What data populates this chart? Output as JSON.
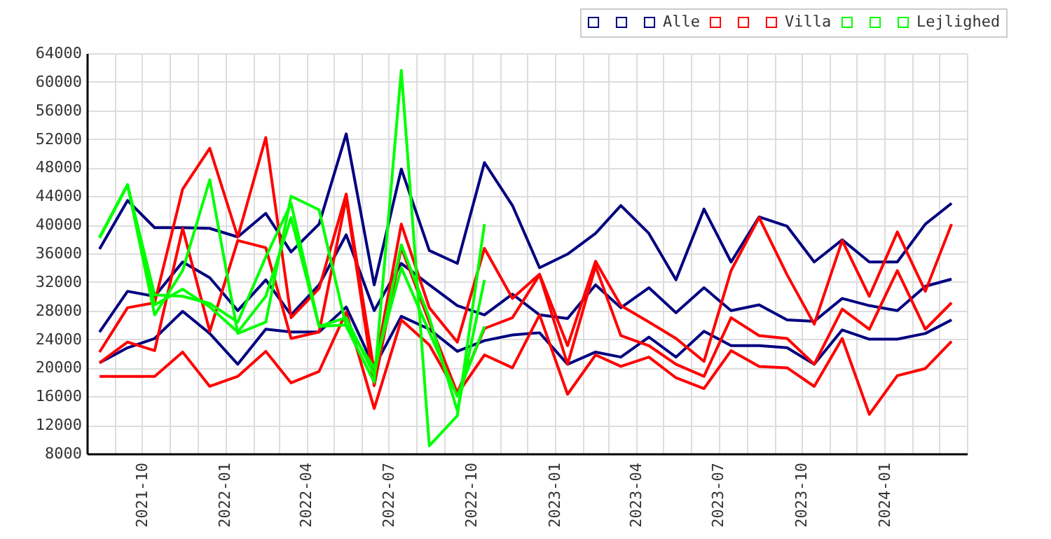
{
  "chart_data": {
    "type": "line",
    "x": [
      "2021-08-15",
      "2021-09-15",
      "2021-10-15",
      "2021-11-15",
      "2021-12-15",
      "2022-01-15",
      "2022-02-15",
      "2022-03-15",
      "2022-04-15",
      "2022-05-15",
      "2022-06-15",
      "2022-07-15",
      "2022-08-15",
      "2022-09-15",
      "2022-10-15",
      "2022-11-15",
      "2022-12-15",
      "2023-01-15",
      "2023-02-15",
      "2023-03-15",
      "2023-04-15",
      "2023-05-15",
      "2023-06-15",
      "2023-07-15",
      "2023-08-15",
      "2023-09-15",
      "2023-10-15",
      "2023-11-15",
      "2023-12-15",
      "2024-01-15",
      "2024-02-15",
      "2024-03-15"
    ],
    "series": [
      {
        "color": "#000080",
        "values": [
          36600,
          43400,
          39600,
          39600,
          39500,
          38300,
          41600,
          36200,
          40100,
          52700,
          31600,
          47800,
          36400,
          34600,
          48700,
          42700,
          34000,
          35900,
          38800,
          42700,
          38800,
          32300,
          42200,
          34800,
          41100,
          39800,
          34800,
          37900,
          34800,
          34800,
          40100,
          43000
        ]
      },
      {
        "color": "#000080",
        "values": [
          25000,
          30700,
          30000,
          34800,
          32600,
          28000,
          32300,
          27400,
          31600,
          38600,
          28000,
          34600,
          31600,
          28700,
          27400,
          30300,
          27400,
          26900,
          31600,
          28400,
          31200,
          27700,
          31200,
          28000,
          28800,
          26700,
          26500,
          29700,
          28700,
          28000,
          31400,
          32400
        ]
      },
      {
        "name": "Alle",
        "color": "#000080",
        "values": [
          20700,
          22800,
          24100,
          27900,
          24800,
          20500,
          25400,
          25000,
          25000,
          28500,
          20100,
          27200,
          25400,
          22300,
          23800,
          24600,
          24900,
          20500,
          22200,
          21500,
          24300,
          21500,
          25100,
          23100,
          23100,
          22800,
          20500,
          25300,
          24000,
          24000,
          24800,
          26700
        ]
      },
      {
        "color": "#ff0000",
        "values": [
          22200,
          28400,
          29100,
          45000,
          50700,
          38300,
          52200,
          27000,
          31100,
          44300,
          19500,
          40100,
          28400,
          23600,
          36700,
          29700,
          33100,
          23100,
          34900,
          28700,
          26400,
          24100,
          20900,
          33600,
          41000,
          33000,
          26100,
          37800,
          30000,
          39000,
          30700,
          40100
        ]
      },
      {
        "color": "#ff0000",
        "values": [
          20700,
          23600,
          22400,
          39500,
          25100,
          37800,
          36800,
          24100,
          25000,
          43700,
          17500,
          36800,
          26400,
          16500,
          25500,
          27000,
          33000,
          20500,
          34200,
          24500,
          23100,
          20500,
          18800,
          27000,
          24500,
          24100,
          20500,
          28200,
          25400,
          33600,
          25400,
          29100
        ]
      },
      {
        "name": "Villa",
        "color": "#ff0000",
        "values": [
          18800,
          18800,
          18800,
          22200,
          17400,
          18800,
          22300,
          17900,
          19500,
          27800,
          14300,
          26700,
          23200,
          16300,
          21800,
          20000,
          27400,
          16300,
          21800,
          20200,
          21500,
          18600,
          17100,
          22400,
          20200,
          20000,
          17400,
          24100,
          13500,
          18900,
          19900,
          23700
        ]
      },
      {
        "color": "#00ff00",
        "values": [
          38200,
          45600,
          27400,
          33600,
          46300,
          24800,
          26400,
          44000,
          42100,
          25800,
          18000,
          61600,
          9100,
          13300,
          40100,
          null,
          null,
          null,
          null,
          null,
          null,
          null,
          null,
          null,
          null,
          null,
          null,
          null,
          null,
          null,
          null,
          null
        ]
      },
      {
        "color": "#00ff00",
        "values": [
          38200,
          45600,
          30200,
          30000,
          29000,
          26400,
          35500,
          43000,
          25800,
          27000,
          19000,
          37200,
          27000,
          14000,
          32300,
          null,
          null,
          null,
          null,
          null,
          null,
          null,
          null,
          null,
          null,
          null,
          null,
          null,
          null,
          null,
          null,
          null
        ]
      },
      {
        "name": "Lejlighed",
        "color": "#00ff00",
        "values": [
          38200,
          45600,
          28800,
          31000,
          28500,
          25000,
          30000,
          41000,
          25800,
          26000,
          20000,
          34000,
          25000,
          16000,
          25800,
          null,
          null,
          null,
          null,
          null,
          null,
          null,
          null,
          null,
          null,
          null,
          null,
          null,
          null,
          null,
          null,
          null
        ]
      }
    ],
    "xlim": [
      "2021-08-01",
      "2024-04-01"
    ],
    "xticks": [
      {
        "value": "2021-08",
        "label": null
      },
      {
        "value": "2021-09",
        "label": null
      },
      "2021-10",
      {
        "value": "2021-11",
        "label": null
      },
      {
        "value": "2021-12",
        "label": null
      },
      "2022-01",
      {
        "value": "2022-02",
        "label": null
      },
      {
        "value": "2022-03",
        "label": null
      },
      "2022-04",
      {
        "value": "2022-05",
        "label": null
      },
      {
        "value": "2022-06",
        "label": null
      },
      "2022-07",
      {
        "value": "2022-08",
        "label": null
      },
      {
        "value": "2022-09",
        "label": null
      },
      "2022-10",
      {
        "value": "2022-11",
        "label": null
      },
      {
        "value": "2022-12",
        "label": null
      },
      "2023-01",
      {
        "value": "2023-02",
        "label": null
      },
      {
        "value": "2023-03",
        "label": null
      },
      "2023-04",
      {
        "value": "2023-05",
        "label": null
      },
      {
        "value": "2023-06",
        "label": null
      },
      "2023-07",
      {
        "value": "2023-08",
        "label": null
      },
      {
        "value": "2023-09",
        "label": null
      },
      "2023-10",
      {
        "value": "2023-11",
        "label": null
      },
      {
        "value": "2023-12",
        "label": null
      },
      "2024-01",
      {
        "value": "2024-02",
        "label": null
      },
      {
        "value": "2024-03",
        "label": null
      },
      {
        "value": "2024-04",
        "label": null
      }
    ],
    "ylim": [
      8000,
      64000
    ],
    "yticks": [
      8000,
      12000,
      16000,
      20000,
      24000,
      28000,
      32000,
      36000,
      40000,
      44000,
      48000,
      52000,
      56000,
      60000,
      64000
    ],
    "grid": true,
    "legend": "top right",
    "marker": "none",
    "line_style": "solid"
  }
}
